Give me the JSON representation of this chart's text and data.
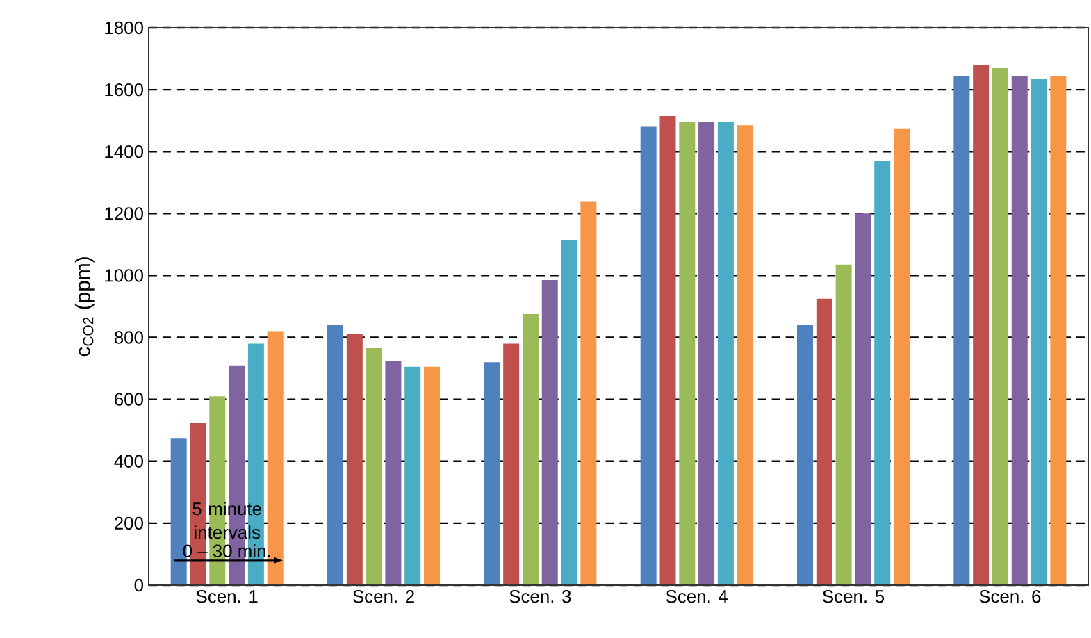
{
  "chart_data": {
    "type": "bar",
    "ylabel": "c$_{CO2}$ (ppm)",
    "categories": [
      "Scen. 1",
      "Scen. 2",
      "Scen. 3",
      "Scen. 4",
      "Scen. 5",
      "Scen. 6"
    ],
    "series": [
      {
        "color": "#4f81bd",
        "values": [
          475,
          840,
          720,
          1480,
          840,
          1645
        ]
      },
      {
        "color": "#c0504d",
        "values": [
          525,
          810,
          780,
          1515,
          925,
          1680
        ]
      },
      {
        "color": "#9bbb59",
        "values": [
          610,
          765,
          875,
          1495,
          1035,
          1670
        ]
      },
      {
        "color": "#8064a2",
        "values": [
          710,
          725,
          985,
          1495,
          1200,
          1645
        ]
      },
      {
        "color": "#4bacc6",
        "values": [
          780,
          705,
          1115,
          1495,
          1370,
          1635
        ]
      },
      {
        "color": "#f79646",
        "values": [
          820,
          705,
          1240,
          1485,
          1475,
          1645
        ]
      }
    ],
    "ylim": [
      0,
      1800
    ],
    "yticks": [
      0,
      200,
      400,
      600,
      800,
      1000,
      1200,
      1400,
      1600,
      1800
    ],
    "grid": "y",
    "annotations": [
      "5 minute intervals",
      "0 – 30 min."
    ]
  }
}
